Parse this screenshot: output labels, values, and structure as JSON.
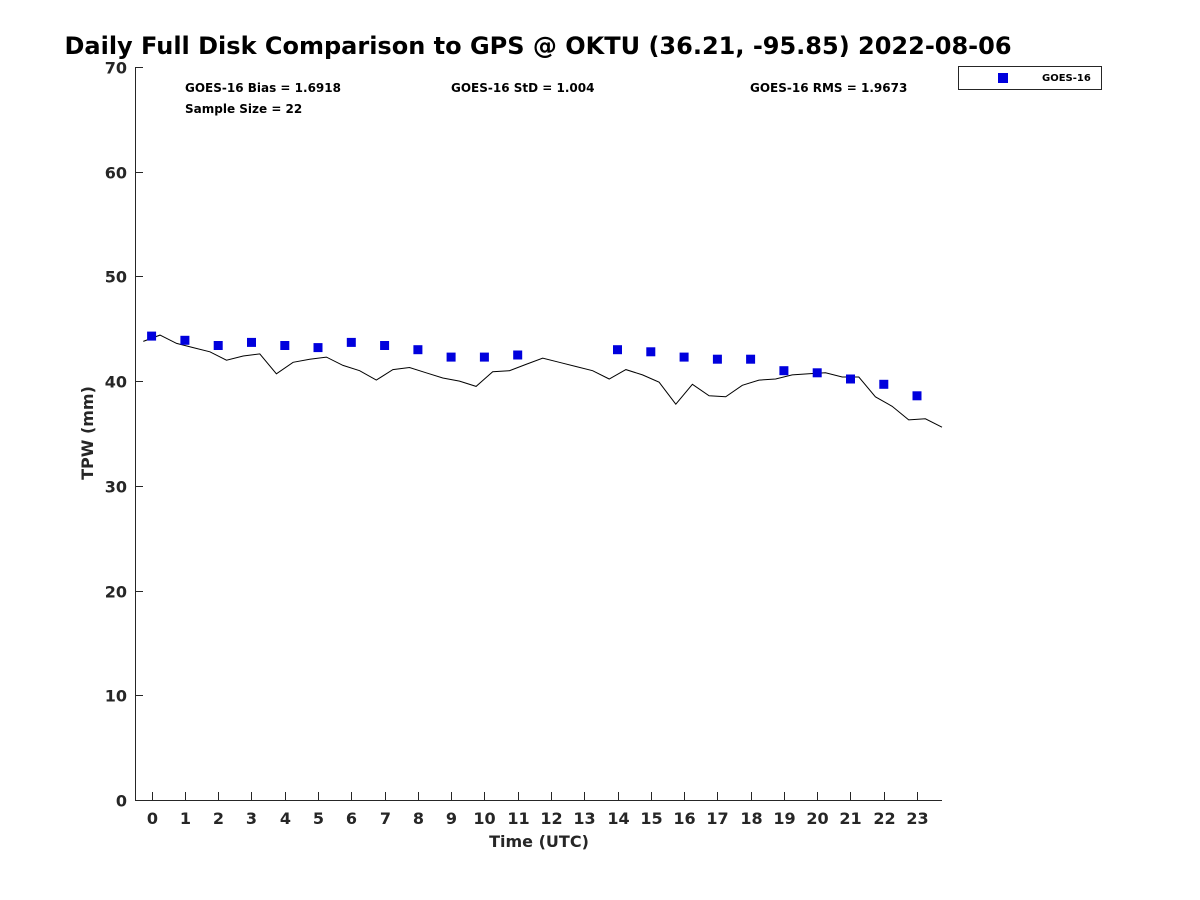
{
  "chart_data": {
    "type": "scatter",
    "title": "Daily Full Disk Comparison to GPS @ OKTU (36.21, -95.85) 2022-08-06",
    "xlabel": "Time (UTC)",
    "ylabel": "TPW (mm)",
    "xlim": [
      -0.5,
      23.75
    ],
    "ylim": [
      0,
      70
    ],
    "x_ticks": [
      "0",
      "1",
      "2",
      "3",
      "4",
      "5",
      "6",
      "7",
      "8",
      "9",
      "10",
      "11",
      "12",
      "13",
      "14",
      "15",
      "16",
      "17",
      "18",
      "19",
      "20",
      "21",
      "22",
      "23"
    ],
    "y_ticks": [
      "0",
      "10",
      "20",
      "30",
      "40",
      "50",
      "60",
      "70"
    ],
    "grid": false,
    "legend_position": "top-right, outside plot area",
    "stats": {
      "bias": "GOES-16 Bias = 1.6918",
      "std": "GOES-16 StD = 1.004",
      "rms": "GOES-16 RMS = 1.9673",
      "sample_size": "Sample Size = 22"
    },
    "series": [
      {
        "name": "GOES-16",
        "kind": "scatter",
        "marker": "square",
        "color": "#0000dd",
        "points": [
          [
            0,
            44.3
          ],
          [
            1,
            43.9
          ],
          [
            2,
            43.4
          ],
          [
            3,
            43.7
          ],
          [
            4,
            43.4
          ],
          [
            5,
            43.2
          ],
          [
            6,
            43.7
          ],
          [
            7,
            43.4
          ],
          [
            8,
            43.0
          ],
          [
            9,
            42.3
          ],
          [
            10,
            42.3
          ],
          [
            11,
            42.5
          ],
          [
            14,
            43.0
          ],
          [
            15,
            42.8
          ],
          [
            16,
            42.3
          ],
          [
            17,
            42.1
          ],
          [
            18,
            42.1
          ],
          [
            19,
            41.0
          ],
          [
            20,
            40.8
          ],
          [
            21,
            40.2
          ],
          [
            22,
            39.7
          ],
          [
            23,
            38.6
          ]
        ]
      },
      {
        "kind": "line",
        "color": "#000000",
        "points": [
          [
            -0.25,
            43.8
          ],
          [
            0.25,
            44.4
          ],
          [
            0.75,
            43.6
          ],
          [
            1.25,
            43.2
          ],
          [
            1.75,
            42.8
          ],
          [
            2.25,
            42.0
          ],
          [
            2.75,
            42.4
          ],
          [
            3.25,
            42.6
          ],
          [
            3.75,
            40.7
          ],
          [
            4.25,
            41.8
          ],
          [
            4.75,
            42.1
          ],
          [
            5.25,
            42.3
          ],
          [
            5.75,
            41.5
          ],
          [
            6.25,
            41.0
          ],
          [
            6.75,
            40.1
          ],
          [
            7.25,
            41.1
          ],
          [
            7.75,
            41.3
          ],
          [
            8.25,
            40.8
          ],
          [
            8.75,
            40.3
          ],
          [
            9.25,
            40.0
          ],
          [
            9.75,
            39.5
          ],
          [
            10.25,
            40.9
          ],
          [
            10.75,
            41.0
          ],
          [
            11.25,
            41.6
          ],
          [
            11.75,
            42.2
          ],
          [
            12.25,
            41.8
          ],
          [
            12.75,
            41.4
          ],
          [
            13.25,
            41.0
          ],
          [
            13.75,
            40.2
          ],
          [
            14.25,
            41.1
          ],
          [
            14.75,
            40.6
          ],
          [
            15.25,
            39.9
          ],
          [
            15.75,
            37.8
          ],
          [
            16.25,
            39.7
          ],
          [
            16.75,
            38.6
          ],
          [
            17.25,
            38.5
          ],
          [
            17.75,
            39.6
          ],
          [
            18.25,
            40.1
          ],
          [
            18.75,
            40.2
          ],
          [
            19.25,
            40.6
          ],
          [
            19.75,
            40.7
          ],
          [
            20.25,
            40.8
          ],
          [
            20.75,
            40.4
          ],
          [
            21.25,
            40.4
          ],
          [
            21.75,
            38.5
          ],
          [
            22.25,
            37.6
          ],
          [
            22.75,
            36.3
          ],
          [
            23.25,
            36.4
          ],
          [
            23.75,
            35.6
          ]
        ]
      }
    ]
  }
}
